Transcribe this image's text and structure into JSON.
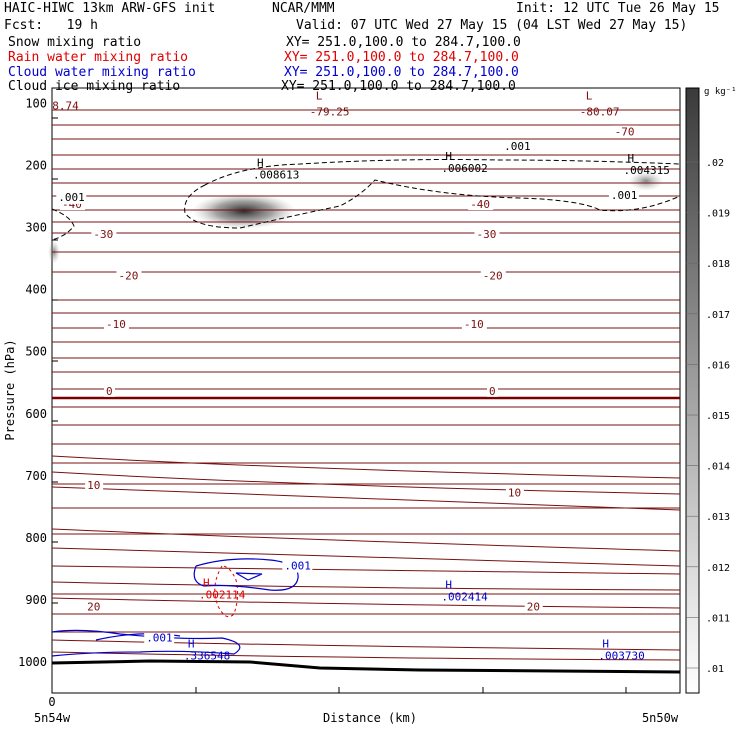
{
  "header": {
    "model": "HAIC-HIWC 13km ARW-GFS init",
    "center": "NCAR/MMM",
    "init": "Init: 12 UTC Tue 26 May 15",
    "fcst": "Fcst:   19 h",
    "valid": "Valid: 07 UTC Wed 27 May 15 (04 LST Wed 27 May 15)",
    "fields": [
      {
        "name": "Snow mixing ratio",
        "xy": "XY= 251.0,100.0 to 284.7,100.0",
        "color": "#000000"
      },
      {
        "name": "Rain water mixing ratio",
        "xy": "XY= 251.0,100.0 to 284.7,100.0",
        "color": "#e00000"
      },
      {
        "name": "Cloud water mixing ratio",
        "xy": "XY= 251.0,100.0 to 284.7,100.0",
        "color": "#0000cc"
      },
      {
        "name": "Cloud ice mixing ratio",
        "xy": "XY= 251.0,100.0 to 284.7,100.0",
        "color": "#000000"
      }
    ]
  },
  "chart_data": {
    "type": "contour",
    "xlabel": "Distance (km)",
    "ylabel": "Pressure (hPa)",
    "x_tick_labels": [
      "0"
    ],
    "x_end_labels": [
      "5n54w",
      "5n50w"
    ],
    "yticks": [
      100,
      200,
      300,
      400,
      500,
      600,
      700,
      800,
      900,
      1000
    ],
    "ylim": [
      1050,
      75
    ],
    "colorbar": {
      "unit": "g kg⁻¹",
      "labels": [
        ".02",
        ".019",
        ".018",
        ".017",
        ".016",
        ".015",
        ".014",
        ".013",
        ".012",
        ".011",
        ".01"
      ]
    },
    "temperature_contours": {
      "color": "#7a1010",
      "zero_color": "#7a0000",
      "labels": [
        {
          "text": "-70",
          "x": 0.88,
          "p": 145
        },
        {
          "text": "-40",
          "x": 0.0,
          "p": 262
        },
        {
          "text": "-40",
          "x": 0.65,
          "p": 262
        },
        {
          "text": "-30",
          "x": 0.05,
          "p": 310
        },
        {
          "text": "-30",
          "x": 0.66,
          "p": 310
        },
        {
          "text": "-20",
          "x": 0.09,
          "p": 377
        },
        {
          "text": "-20",
          "x": 0.67,
          "p": 377
        },
        {
          "text": "-10",
          "x": 0.07,
          "p": 455
        },
        {
          "text": "-10",
          "x": 0.64,
          "p": 455
        },
        {
          "text": "0",
          "x": 0.07,
          "p": 563
        },
        {
          "text": "0",
          "x": 0.68,
          "p": 563
        },
        {
          "text": "10",
          "x": 0.04,
          "p": 715
        },
        {
          "text": "10",
          "x": 0.71,
          "p": 727
        },
        {
          "text": "20",
          "x": 0.04,
          "p": 911
        },
        {
          "text": "20",
          "x": 0.74,
          "p": 911
        }
      ],
      "extrema": [
        {
          "type": "L",
          "value": "-79.25",
          "x": 0.42,
          "p": 110
        },
        {
          "type": "L",
          "value": "-80.07",
          "x": 0.85,
          "p": 110
        },
        {
          "type": "",
          "value": "8.74",
          "x": 0.01,
          "p": 100
        }
      ]
    },
    "snow_contours": {
      "color": "#000000",
      "level": ".001",
      "labels": [
        {
          "text": ".001",
          "x": 0.72,
          "p": 175
        },
        {
          "text": ".001",
          "x": 0.89,
          "p": 254
        },
        {
          "text": ".001",
          "x": 0.01,
          "p": 257
        }
      ],
      "maxima": [
        {
          "type": "H",
          "value": ".008613",
          "x": 0.32,
          "p": 218
        },
        {
          "type": "H",
          "value": ".006002",
          "x": 0.62,
          "p": 207
        },
        {
          "type": "H",
          "value": ".004315",
          "x": 0.91,
          "p": 210
        }
      ]
    },
    "rain_contours": {
      "color": "#e00000",
      "maxima": [
        {
          "type": "H",
          "value": ".002114",
          "x": 0.25,
          "p": 888
        }
      ]
    },
    "cloud_water_contours": {
      "color": "#0000cc",
      "level": ".001",
      "labels": [
        {
          "text": ".001",
          "x": 0.37,
          "p": 851
        },
        {
          "text": ".001",
          "x": 0.15,
          "p": 967
        }
      ],
      "maxima": [
        {
          "type": "H",
          "value": ".002414",
          "x": 0.62,
          "p": 888
        },
        {
          "type": "H",
          "value": ".336548",
          "x": 0.21,
          "p": 983
        },
        {
          "type": "H",
          "value": ".003730",
          "x": 0.87,
          "p": 983
        }
      ]
    }
  }
}
